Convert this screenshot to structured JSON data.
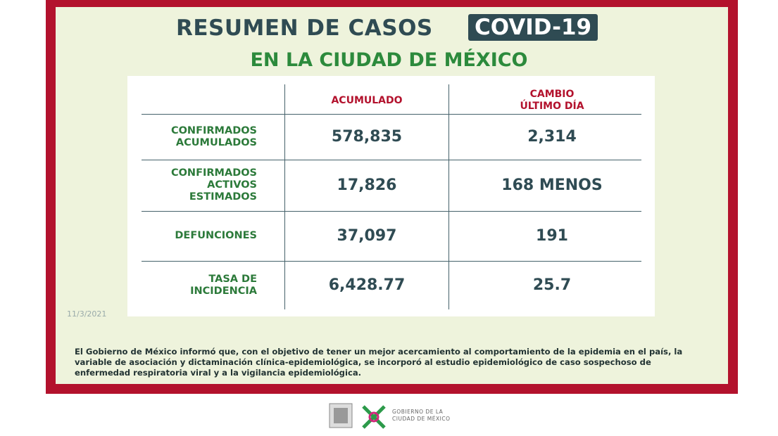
{
  "header": {
    "title": "RESUMEN DE CASOS",
    "badge": "COVID-19",
    "subtitle": "EN LA CIUDAD DE MÉXICO"
  },
  "table": {
    "columns": [
      [
        "ACUMULADO"
      ],
      [
        "CAMBIO",
        "ÚLTIMO DÍA"
      ]
    ],
    "rows": [
      {
        "label": [
          "CONFIRMADOS",
          "ACUMULADOS"
        ],
        "accumulated": "578,835",
        "change": "2,314"
      },
      {
        "label": [
          "CONFIRMADOS",
          "ACTIVOS",
          "ESTIMADOS"
        ],
        "accumulated": "17,826",
        "change": "168 MENOS"
      },
      {
        "label": [
          "DEFUNCIONES"
        ],
        "accumulated": "37,097",
        "change": "191"
      },
      {
        "label": [
          "TASA DE",
          "INCIDENCIA"
        ],
        "accumulated": "6,428.77",
        "change": "25.7"
      }
    ]
  },
  "date": "11/3/2021",
  "note": "El Gobierno de México informó que, con el objetivo de tener un mejor acercamiento al comportamiento de la epidemia en el país, la variable de asociación y dictaminación clínica-epidemiológica, se incorporó al estudio epidemiológico de caso sospechoso de enfermedad respiratoria viral y a la vigilancia epidemiológica.",
  "footer": {
    "logo_text": [
      "GOBIERNO DE LA",
      "CIUDAD DE MÉXICO"
    ]
  }
}
